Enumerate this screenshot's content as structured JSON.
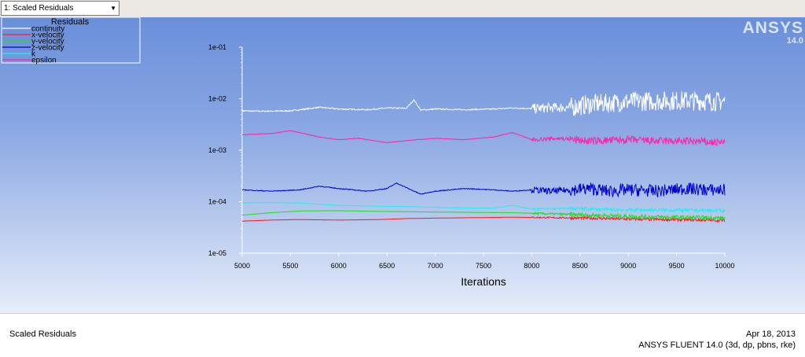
{
  "view_select": {
    "value": "1: Scaled Residuals"
  },
  "brand": {
    "name": "ANSYS",
    "version": "14.0"
  },
  "footer": {
    "left": "Scaled Residuals",
    "date": "Apr 18, 2013",
    "product": "ANSYS FLUENT 14.0 (3d, dp, pbns, rke)"
  },
  "chart_data": {
    "type": "line",
    "legend_title": "Residuals",
    "legend_position": "top-left",
    "xlabel": "Iterations",
    "ylabel": "",
    "xlim": [
      5000,
      10000
    ],
    "ylim": [
      1e-05,
      0.1
    ],
    "yscale": "log",
    "x_ticks": [
      5000,
      5500,
      6000,
      6500,
      7000,
      7500,
      8000,
      8500,
      9000,
      9500,
      10000
    ],
    "y_ticks": [
      0.1,
      0.01,
      0.001,
      0.0001,
      1e-05
    ],
    "y_tick_labels": [
      "1e-01",
      "1e-02",
      "1e-03",
      "1e-04",
      "1e-05"
    ],
    "series": [
      {
        "name": "continuity",
        "color": "#ffffff",
        "x": [
          5000,
          5200,
          5500,
          5800,
          6000,
          6300,
          6500,
          6700,
          6780,
          6850,
          7000,
          7300,
          7600,
          7800,
          8000,
          8200,
          8400,
          8600,
          8800,
          9000,
          9300,
          9600,
          9800,
          10000
        ],
        "y": [
          0.0058,
          0.0057,
          0.0058,
          0.0068,
          0.0063,
          0.0061,
          0.0066,
          0.0065,
          0.0095,
          0.006,
          0.0063,
          0.0061,
          0.0063,
          0.0066,
          0.0064,
          0.0067,
          0.0068,
          0.0078,
          0.0082,
          0.0088,
          0.009,
          0.0092,
          0.009,
          0.0088
        ]
      },
      {
        "name": "x-velocity",
        "color": "#ff1a1a",
        "x": [
          5000,
          5300,
          5600,
          6000,
          6400,
          6700,
          7000,
          7400,
          7800,
          8200,
          8600,
          9000,
          9400,
          9800,
          10000
        ],
        "y": [
          4.2e-05,
          4.4e-05,
          4.5e-05,
          4.4e-05,
          4.5e-05,
          4.7e-05,
          4.8e-05,
          4.9e-05,
          5e-05,
          4.9e-05,
          4.8e-05,
          4.6e-05,
          4.5e-05,
          4.4e-05,
          4.3e-05
        ]
      },
      {
        "name": "y-velocity",
        "color": "#22dd22",
        "x": [
          5000,
          5300,
          5600,
          6000,
          6400,
          6700,
          7000,
          7400,
          7800,
          8200,
          8600,
          9000,
          9400,
          9800,
          10000
        ],
        "y": [
          5.5e-05,
          6.1e-05,
          6.6e-05,
          6.7e-05,
          6.5e-05,
          6.4e-05,
          6.3e-05,
          6.2e-05,
          6.1e-05,
          5.8e-05,
          5.5e-05,
          5.2e-05,
          5e-05,
          4.9e-05,
          4.8e-05
        ]
      },
      {
        "name": "z-velocity",
        "color": "#0000cc",
        "x": [
          5000,
          5300,
          5600,
          5800,
          6000,
          6300,
          6500,
          6600,
          6750,
          6850,
          7000,
          7300,
          7600,
          7800,
          8000,
          8200,
          8400,
          8600,
          8800,
          9000,
          9300,
          9600,
          9800,
          10000
        ],
        "y": [
          0.00017,
          0.00016,
          0.00017,
          0.0002,
          0.00018,
          0.00016,
          0.00018,
          0.00023,
          0.00017,
          0.00014,
          0.00016,
          0.00018,
          0.00017,
          0.00016,
          0.00017,
          0.00016,
          0.00017,
          0.00018,
          0.00016,
          0.00017,
          0.00016,
          0.00018,
          0.00017,
          0.00017
        ]
      },
      {
        "name": "k",
        "color": "#22eeee",
        "x": [
          5000,
          5300,
          5600,
          6000,
          6400,
          6800,
          7200,
          7600,
          7800,
          8000,
          8400,
          8800,
          9200,
          9600,
          10000
        ],
        "y": [
          9.5e-05,
          9.6e-05,
          9.4e-05,
          8.5e-05,
          8.2e-05,
          8e-05,
          7.6e-05,
          7.5e-05,
          8.5e-05,
          7.2e-05,
          7.4e-05,
          7e-05,
          6.9e-05,
          6.8e-05,
          6.7e-05
        ]
      },
      {
        "name": "epsilon",
        "color": "#ff22aa",
        "x": [
          5000,
          5300,
          5500,
          5800,
          6000,
          6200,
          6500,
          6800,
          7000,
          7300,
          7600,
          7800,
          8000,
          8300,
          8600,
          9000,
          9300,
          9600,
          10000
        ],
        "y": [
          0.002,
          0.0021,
          0.0024,
          0.0018,
          0.0016,
          0.0017,
          0.0014,
          0.0016,
          0.0017,
          0.0016,
          0.0018,
          0.0022,
          0.0016,
          0.0017,
          0.0015,
          0.0016,
          0.0015,
          0.0015,
          0.0014
        ]
      }
    ]
  }
}
